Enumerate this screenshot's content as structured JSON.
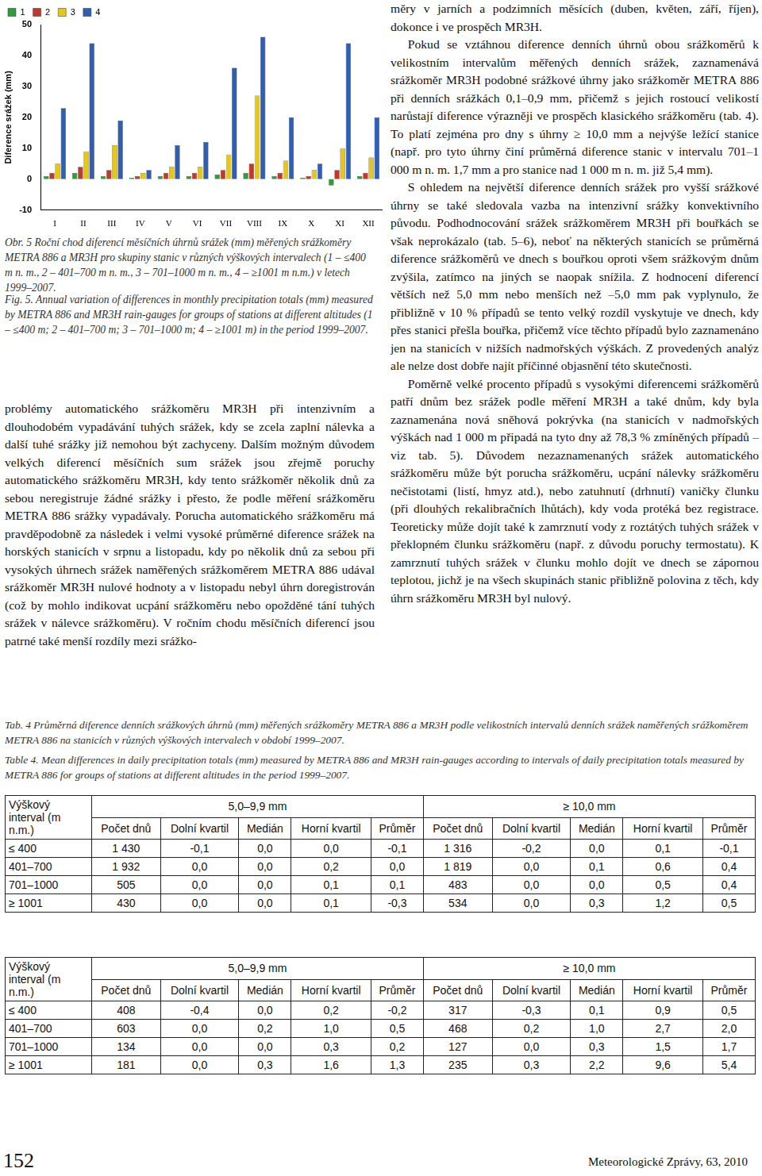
{
  "chart_data": {
    "type": "bar",
    "y_label": "Diference srážek (mm)",
    "categories": [
      "I",
      "II",
      "III",
      "IV",
      "V",
      "VI",
      "VII",
      "VIII",
      "IX",
      "X",
      "XI",
      "XII"
    ],
    "series": [
      {
        "name": "1",
        "color": "#2e9e3a",
        "values": [
          1,
          2,
          1,
          0.5,
          1,
          1,
          1.5,
          2,
          1,
          0.5,
          -2,
          1
        ]
      },
      {
        "name": "2",
        "color": "#c0392b",
        "values": [
          2,
          4,
          3,
          1,
          2,
          2,
          3,
          5,
          2,
          1,
          3,
          2
        ]
      },
      {
        "name": "3",
        "color": "#e6c619",
        "values": [
          5,
          9,
          11,
          2,
          4,
          4,
          8,
          27,
          6,
          3,
          10,
          7
        ]
      },
      {
        "name": "4",
        "color": "#2f5fb5",
        "values": [
          23,
          44,
          19,
          3,
          11,
          12,
          36,
          46,
          20,
          5,
          44,
          20
        ]
      }
    ],
    "ylim": [
      -10,
      50
    ],
    "yticks": [
      -10,
      0,
      10,
      20,
      30,
      40,
      50
    ],
    "grid": false,
    "legend": "upper left"
  },
  "figure_caption": {
    "cs": "Obr. 5 Roční chod diferencí měsíčních úhrnů srážek (mm) měřených srážkoměry METRA 886 a MR3H pro skupiny stanic v různých výškových intervalech (1 – ≤400 m n. m., 2 – 401–700 m n. m., 3 – 701–1000 m n. m., 4 – ≥1001 m n.m.) v letech 1999–2007.",
    "en": "Fig. 5. Annual variation of differences in monthly precipitation totals (mm) measured by METRA 886 and MR3H rain-gauges for groups of stations at different altitudes (1 – ≤400 m; 2 – 401–700 m; 3 – 701–1000 m; 4 – ≥1001 m) in the period 1999–2007."
  },
  "text": {
    "left": [
      "problémy automatického srážkoměru MR3H při intenzivním a dlouhodobém vypadávání tuhých srážek, kdy se zcela zaplní nálevka a další tuhé srážky již nemohou být zachyceny. Dalším možným důvodem velkých diferencí měsíčních sum srážek jsou zřejmě poruchy automatického srážkoměru MR3H, kdy tento srážkoměr několik dnů za sebou neregistruje žádné srážky i přesto, že podle měření srážkoměru METRA 886 srážky vypadávaly. Porucha automatického srážkoměru má pravděpodobně za následek i velmi vysoké průměrné diference srážek na horských stanicích v srpnu a listopadu, kdy po několik dnů za sebou při vysokých úhrnech srážek naměřených srážkoměrem METRA 886 udával srážkoměr MR3H nulové hodnoty a v listopadu nebyl úhrn doregistrován (což by mohlo indikovat ucpání srážkoměru nebo opožděné tání tuhých srážek v nálevce srážkoměru). V ročním chodu měsíčních diferencí jsou patrné také menší rozdíly mezi srážko-"
    ],
    "right": [
      "měry v jarních a podzimních měsících (duben, květen, září, říjen), dokonce i ve prospěch MR3H.",
      "Pokud se vztáhnou diference denních úhrnů obou srážkoměrů k velikostním intervalům měřených denních srážek, zaznamenává srážkoměr MR3H podobné srážkové úhrny jako srážkoměr METRA 886 při denních srážkách 0,1–0,9 mm, přičemž s jejich rostoucí velikostí narůstají diference výrazněji ve prospěch klasického srážkoměru (tab. 4). To platí zejména pro dny s úhrny ≥ 10,0 mm a nejvýše ležící stanice (např. pro tyto úhrny činí průměrná diference stanic v intervalu 701–1 000 m n. m. 1,7 mm a pro stanice nad 1 000 m n. m. již 5,4 mm).",
      "S ohledem na největší diference denních srážek pro vyšší srážkové úhrny se také sledovala vazba na intenzivní srážky konvektivního původu. Podhodnocování srážek srážkoměrem MR3H při bouřkách se však neprokázalo (tab. 5–6), neboť na některých stanicích se průměrná diference srážkoměrů ve dnech s bouřkou oproti všem srážkovým dnům zvýšila, zatímco na jiných se naopak snížila. Z hodnocení diferencí větších než 5,0 mm nebo menších než –5,0 mm pak vyplynulo, že přibližně v 10 % případů se tento velký rozdíl vyskytuje ve dnech, kdy přes stanici přešla bouřka, přičemž více těchto případů bylo zaznamenáno jen na stanicích v nižších nadmořských výškách. Z provedených analýz ale nelze dost dobře najít příčinné objasnění této skutečnosti.",
      "Poměrně velké procento případů s vysokými diferencemi srážkoměrů patří dnům bez srážek podle měření MR3H a také dnům, kdy byla zaznamenána nová sněhová pokrývka (na stanicích v nadmořských výškách nad 1 000 m připadá na tyto dny až 78,3 % zmíněných případů – viz tab. 5). Důvodem nezaznamenaných srážek automatického srážkoměru může být porucha srážkoměru, ucpání nálevky srážkoměru nečistotami (listí, hmyz atd.), nebo zatuhnutí (drhnutí) vaničky člunku (při dlouhých rekalibračních lhůtách), kdy voda protéká bez registrace. Teoreticky může dojít také k zamrznutí vody z roztátých tuhých srážek v překlopném člunku srážkoměru (např. z důvodu poruchy termostatu). K zamrznutí tuhých srážek v člunku mohlo dojít ve dnech se zápornou teplotou, jichž je na všech skupinách stanic přibližně polovina z těch, kdy úhrn srážkoměru MR3H byl nulový."
    ]
  },
  "table_caption": {
    "cs": "Tab. 4 Průměrná diference denních srážkových úhrnů (mm) měřených srážkoměry METRA 886 a MR3H podle velikostních intervalů denních srážek naměřených srážkoměrem METRA 886 na stanicích v různých výškových intervalech v období 1999–2007.",
    "en": "Table 4. Mean differences in daily precipitation totals (mm) measured by METRA 886 and MR3H rain-gauges according to intervals of daily precipitation totals measured by METRA 886 for groups of stations at different altitudes in the period 1999–2007."
  },
  "tables": [
    {
      "first_header": "Výškový interval (m n.m.)",
      "groups": [
        "5,0–9,9 mm",
        "≥ 10,0 mm"
      ],
      "columns": [
        "Počet dnů",
        "Dolní kvartil",
        "Medián",
        "Horní kvartil",
        "Průměr"
      ],
      "rows": [
        [
          "≤ 400",
          "1 430",
          "-0,1",
          "0,0",
          "0,0",
          "-0,1",
          "1 316",
          "-0,2",
          "0,0",
          "0,1",
          "-0,1"
        ],
        [
          "401–700",
          "1 932",
          "0,0",
          "0,0",
          "0,2",
          "0,0",
          "1 819",
          "0,0",
          "0,1",
          "0,6",
          "0,4"
        ],
        [
          "701–1000",
          "505",
          "0,0",
          "0,0",
          "0,1",
          "0,1",
          "483",
          "0,0",
          "0,0",
          "0,5",
          "0,4"
        ],
        [
          "≥ 1001",
          "430",
          "0,0",
          "0,0",
          "0,1",
          "-0,3",
          "534",
          "0,0",
          "0,3",
          "1,2",
          "0,5"
        ]
      ]
    },
    {
      "first_header": "Výškový interval (m n.m.)",
      "groups": [
        "5,0–9,9 mm",
        "≥ 10,0 mm"
      ],
      "columns": [
        "Počet dnů",
        "Dolní kvartil",
        "Medián",
        "Horní kvartil",
        "Průměr"
      ],
      "rows": [
        [
          "≤ 400",
          "408",
          "-0,4",
          "0,0",
          "0,2",
          "-0,2",
          "317",
          "-0,3",
          "0,1",
          "0,9",
          "0,5"
        ],
        [
          "401–700",
          "603",
          "0,0",
          "0,2",
          "1,0",
          "0,5",
          "468",
          "0,2",
          "1,0",
          "2,7",
          "2,0"
        ],
        [
          "701–1000",
          "134",
          "0,0",
          "0,0",
          "0,3",
          "0,2",
          "127",
          "0,0",
          "0,3",
          "1,5",
          "1,7"
        ],
        [
          "≥ 1001",
          "181",
          "0,0",
          "0,3",
          "1,6",
          "1,3",
          "235",
          "0,3",
          "2,2",
          "9,6",
          "5,4"
        ]
      ]
    }
  ],
  "footer": {
    "page": "152",
    "journal": "Meteorologické Zprávy, 63, 2010"
  }
}
